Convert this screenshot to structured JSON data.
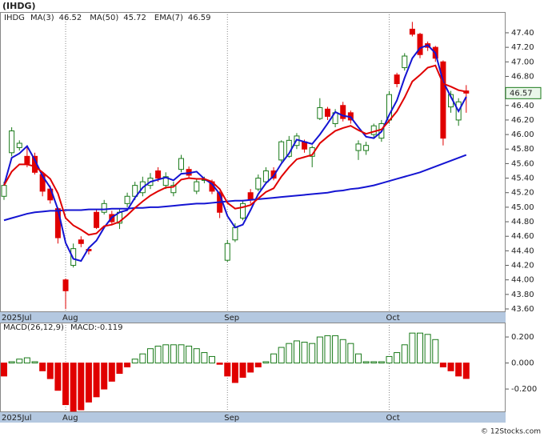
{
  "chart_data": [
    {
      "type": "candlestick",
      "title": "(IHDG)",
      "symbol": "IHDG",
      "categories": [
        "2025Jul",
        null,
        null,
        null,
        null,
        null,
        null,
        null,
        "Aug",
        null,
        null,
        null,
        null,
        null,
        null,
        null,
        null,
        null,
        null,
        null,
        null,
        null,
        null,
        null,
        null,
        null,
        null,
        null,
        null,
        "Sep",
        null,
        null,
        null,
        null,
        null,
        null,
        null,
        null,
        null,
        null,
        null,
        null,
        null,
        null,
        null,
        null,
        null,
        null,
        null,
        null,
        "Oct",
        null,
        null,
        null,
        null,
        null,
        null,
        null,
        null,
        null,
        null
      ],
      "open": [
        45.15,
        45.75,
        45.82,
        45.7,
        45.7,
        45.45,
        45.25,
        44.98,
        44.0,
        44.2,
        44.55,
        44.42,
        44.93,
        44.93,
        44.9,
        44.78,
        45.05,
        45.15,
        45.2,
        45.3,
        45.5,
        45.3,
        45.2,
        45.52,
        45.52,
        45.22,
        45.37,
        45.35,
        45.2,
        44.27,
        44.55,
        44.85,
        45.2,
        45.25,
        45.35,
        45.5,
        45.65,
        45.7,
        45.85,
        45.9,
        45.7,
        46.22,
        46.35,
        46.15,
        46.4,
        46.3,
        45.78,
        45.78,
        46.0,
        45.95,
        46.2,
        46.82,
        46.92,
        47.45,
        47.38,
        47.25,
        47.2,
        47.0,
        46.38,
        46.2,
        46.6
      ],
      "high": [
        45.35,
        46.1,
        45.92,
        45.85,
        45.75,
        45.48,
        45.3,
        45.0,
        44.02,
        44.5,
        44.6,
        44.45,
        44.97,
        45.1,
        44.95,
        44.98,
        45.2,
        45.35,
        45.42,
        45.47,
        45.55,
        45.48,
        45.35,
        45.72,
        45.56,
        45.4,
        45.42,
        45.38,
        45.22,
        44.55,
        44.78,
        45.1,
        45.25,
        45.45,
        45.55,
        45.55,
        45.92,
        45.98,
        46.02,
        45.93,
        45.85,
        46.5,
        46.38,
        46.35,
        46.45,
        46.33,
        45.92,
        45.9,
        46.15,
        46.2,
        46.6,
        46.85,
        47.12,
        47.55,
        47.4,
        47.28,
        47.22,
        47.02,
        46.6,
        46.5,
        46.68
      ],
      "low": [
        45.1,
        45.7,
        45.78,
        45.55,
        45.45,
        45.15,
        45.05,
        44.5,
        43.6,
        44.17,
        44.45,
        44.35,
        44.7,
        44.9,
        44.75,
        44.7,
        45.0,
        45.1,
        45.15,
        45.25,
        45.35,
        45.25,
        45.15,
        45.48,
        45.4,
        45.18,
        45.33,
        45.18,
        44.85,
        44.25,
        44.52,
        44.82,
        45.05,
        45.22,
        45.32,
        45.37,
        45.62,
        45.68,
        45.8,
        45.75,
        45.55,
        46.2,
        46.2,
        46.1,
        46.18,
        46.15,
        45.65,
        45.72,
        45.95,
        45.9,
        46.15,
        46.65,
        46.88,
        47.35,
        47.05,
        47.15,
        47.0,
        45.85,
        46.3,
        46.12,
        46.3
      ],
      "close": [
        45.3,
        46.05,
        45.88,
        45.6,
        45.48,
        45.22,
        45.1,
        44.58,
        43.85,
        44.43,
        44.5,
        44.4,
        44.72,
        45.05,
        44.8,
        44.93,
        45.15,
        45.3,
        45.35,
        45.4,
        45.4,
        45.42,
        45.3,
        45.67,
        45.44,
        45.35,
        45.38,
        45.22,
        44.93,
        44.5,
        44.72,
        45.05,
        45.1,
        45.4,
        45.5,
        45.4,
        45.9,
        45.92,
        45.98,
        45.8,
        45.82,
        46.37,
        46.25,
        46.3,
        46.22,
        46.2,
        45.87,
        45.85,
        46.12,
        46.15,
        46.55,
        46.7,
        47.08,
        47.38,
        47.1,
        47.2,
        47.05,
        45.95,
        46.55,
        46.45,
        46.57
      ],
      "up_color": "#1a7a1a",
      "down_color": "#e00000",
      "indicators": [
        {
          "name": "MA(3)",
          "value": 46.52,
          "color": "#1414d2",
          "values": [
            45.3,
            45.68,
            45.74,
            45.84,
            45.65,
            45.43,
            45.27,
            44.97,
            44.51,
            44.29,
            44.26,
            44.44,
            44.54,
            44.72,
            44.86,
            44.93,
            44.96,
            45.13,
            45.27,
            45.35,
            45.38,
            45.41,
            45.37,
            45.46,
            45.47,
            45.49,
            45.39,
            45.32,
            45.18,
            44.88,
            44.72,
            44.76,
            44.96,
            45.18,
            45.33,
            45.43,
            45.6,
            45.74,
            45.93,
            45.9,
            45.87,
            46.0,
            46.15,
            46.31,
            46.26,
            46.24,
            46.1,
            45.97,
            45.95,
            46.04,
            46.27,
            46.47,
            46.78,
            47.05,
            47.19,
            47.23,
            47.12,
            46.73,
            46.52,
            46.32,
            46.52
          ]
        },
        {
          "name": "MA(50)",
          "value": 45.72,
          "color": "#1414d2",
          "values": [
            44.82,
            44.85,
            44.88,
            44.91,
            44.93,
            44.94,
            44.95,
            44.95,
            44.96,
            44.96,
            44.96,
            44.97,
            44.97,
            44.97,
            44.98,
            44.98,
            44.98,
            44.99,
            44.99,
            45.0,
            45.0,
            45.01,
            45.02,
            45.03,
            45.04,
            45.05,
            45.05,
            45.06,
            45.07,
            45.08,
            45.09,
            45.09,
            45.1,
            45.11,
            45.12,
            45.13,
            45.14,
            45.15,
            45.16,
            45.17,
            45.18,
            45.19,
            45.2,
            45.22,
            45.23,
            45.25,
            45.26,
            45.28,
            45.3,
            45.33,
            45.36,
            45.39,
            45.42,
            45.45,
            45.48,
            45.52,
            45.56,
            45.6,
            45.64,
            45.68,
            45.72
          ]
        },
        {
          "name": "EMA(7)",
          "value": 46.59,
          "color": "#e00000",
          "values": [
            45.3,
            45.49,
            45.59,
            45.59,
            45.56,
            45.48,
            45.39,
            45.19,
            44.85,
            44.75,
            44.69,
            44.62,
            44.64,
            44.74,
            44.76,
            44.8,
            44.89,
            44.99,
            45.08,
            45.16,
            45.22,
            45.27,
            45.28,
            45.38,
            45.4,
            45.39,
            45.39,
            45.35,
            45.25,
            45.06,
            44.98,
            45.0,
            45.03,
            45.12,
            45.21,
            45.26,
            45.42,
            45.55,
            45.66,
            45.69,
            45.72,
            45.88,
            45.97,
            46.05,
            46.09,
            46.12,
            46.06,
            46.01,
            46.04,
            46.07,
            46.19,
            46.32,
            46.51,
            46.73,
            46.82,
            46.92,
            46.95,
            46.7,
            46.66,
            46.61,
            46.59
          ]
        }
      ],
      "last_price": 46.57,
      "ylim": [
        43.556,
        47.686
      ],
      "yticks": [
        {
          "value": 43.6,
          "label": "43.60"
        },
        {
          "value": 43.8,
          "label": "43.80"
        },
        {
          "value": 44.0,
          "label": "44.00"
        },
        {
          "value": 44.2,
          "label": "44.20"
        },
        {
          "value": 44.4,
          "label": "44.40"
        },
        {
          "value": 44.6,
          "label": "44.60"
        },
        {
          "value": 44.8,
          "label": "44.80"
        },
        {
          "value": 45.0,
          "label": "45.00"
        },
        {
          "value": 45.2,
          "label": "45.20"
        },
        {
          "value": 45.4,
          "label": "45.40"
        },
        {
          "value": 45.6,
          "label": "45.60"
        },
        {
          "value": 45.8,
          "label": "45.80"
        },
        {
          "value": 46.0,
          "label": "46.00"
        },
        {
          "value": 46.2,
          "label": "46.20"
        },
        {
          "value": 46.4,
          "label": "46.40"
        },
        {
          "value": 46.6,
          "label": "46.60"
        },
        {
          "value": 46.8,
          "label": "46.80"
        },
        {
          "value": 47.0,
          "label": "47.00"
        },
        {
          "value": 47.2,
          "label": "47.20"
        },
        {
          "value": 47.4,
          "label": "47.40"
        }
      ]
    },
    {
      "type": "bar",
      "legend": [
        "MACD(26,12,9)",
        "MACD:-0.119"
      ],
      "categories": [
        "2025Jul",
        null,
        null,
        null,
        null,
        null,
        null,
        null,
        "Aug",
        null,
        null,
        null,
        null,
        null,
        null,
        null,
        null,
        null,
        null,
        null,
        null,
        null,
        null,
        null,
        null,
        null,
        null,
        null,
        null,
        "Sep",
        null,
        null,
        null,
        null,
        null,
        null,
        null,
        null,
        null,
        null,
        null,
        null,
        null,
        null,
        null,
        null,
        null,
        null,
        null,
        null,
        "Oct",
        null,
        null,
        null,
        null,
        null,
        null,
        null,
        null,
        null,
        null
      ],
      "values": [
        -0.1,
        0.01,
        0.03,
        0.04,
        0.01,
        -0.06,
        -0.12,
        -0.21,
        -0.32,
        -0.37,
        -0.36,
        -0.3,
        -0.26,
        -0.2,
        -0.14,
        -0.08,
        -0.03,
        0.03,
        0.07,
        0.11,
        0.13,
        0.14,
        0.14,
        0.14,
        0.13,
        0.11,
        0.08,
        0.05,
        -0.01,
        -0.1,
        -0.15,
        -0.11,
        -0.07,
        -0.03,
        0.01,
        0.07,
        0.12,
        0.15,
        0.17,
        0.16,
        0.15,
        0.2,
        0.21,
        0.21,
        0.18,
        0.15,
        0.07,
        0.01,
        0.01,
        0.01,
        0.05,
        0.08,
        0.14,
        0.23,
        0.23,
        0.22,
        0.18,
        -0.03,
        -0.06,
        -0.1,
        -0.119
      ],
      "up_color": "#1a7a1a",
      "down_color": "#e00000",
      "ylim": [
        -0.378,
        0.311
      ],
      "yticks": [
        {
          "value": 0.2,
          "label": "0.200"
        },
        {
          "value": 0,
          "label": "0.000"
        },
        {
          "value": -0.2,
          "label": "-0.200"
        }
      ]
    }
  ],
  "footer": "© 12Stocks.com"
}
